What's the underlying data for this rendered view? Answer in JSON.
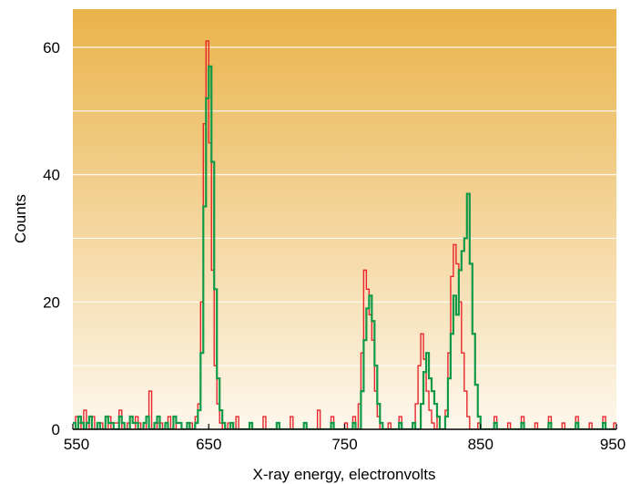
{
  "chart_data": {
    "type": "line",
    "title": "",
    "xlabel": "X-ray energy, electronvolts",
    "ylabel": "Counts",
    "xlim": [
      550,
      950
    ],
    "ylim": [
      0,
      66
    ],
    "xticks": [
      550,
      650,
      750,
      850,
      950
    ],
    "yticks": [
      0,
      20,
      40,
      60
    ],
    "grid": "horizontal",
    "background": {
      "top": "#eab34a",
      "bottom": "#fdf7ec"
    },
    "series": [
      {
        "color": "#e8262b",
        "step": true,
        "points": [
          [
            550,
            0
          ],
          [
            552,
            2
          ],
          [
            554,
            1
          ],
          [
            556,
            0
          ],
          [
            558,
            3
          ],
          [
            560,
            1
          ],
          [
            562,
            0
          ],
          [
            564,
            2
          ],
          [
            566,
            0
          ],
          [
            570,
            1
          ],
          [
            572,
            0
          ],
          [
            576,
            2
          ],
          [
            578,
            0
          ],
          [
            580,
            1
          ],
          [
            584,
            3
          ],
          [
            586,
            0
          ],
          [
            590,
            1
          ],
          [
            592,
            0
          ],
          [
            596,
            2
          ],
          [
            598,
            1
          ],
          [
            600,
            0
          ],
          [
            604,
            2
          ],
          [
            606,
            6
          ],
          [
            608,
            0
          ],
          [
            612,
            1
          ],
          [
            616,
            0
          ],
          [
            620,
            2
          ],
          [
            622,
            0
          ],
          [
            626,
            1
          ],
          [
            630,
            0
          ],
          [
            636,
            1
          ],
          [
            638,
            0
          ],
          [
            640,
            2
          ],
          [
            642,
            4
          ],
          [
            644,
            20
          ],
          [
            646,
            48
          ],
          [
            648,
            61
          ],
          [
            650,
            45
          ],
          [
            652,
            25
          ],
          [
            654,
            10
          ],
          [
            656,
            4
          ],
          [
            658,
            1
          ],
          [
            660,
            0
          ],
          [
            664,
            1
          ],
          [
            666,
            0
          ],
          [
            670,
            2
          ],
          [
            672,
            0
          ],
          [
            680,
            1
          ],
          [
            682,
            0
          ],
          [
            690,
            2
          ],
          [
            692,
            0
          ],
          [
            700,
            1
          ],
          [
            702,
            0
          ],
          [
            710,
            2
          ],
          [
            712,
            0
          ],
          [
            720,
            1
          ],
          [
            722,
            0
          ],
          [
            730,
            3
          ],
          [
            732,
            0
          ],
          [
            740,
            2
          ],
          [
            742,
            0
          ],
          [
            750,
            1
          ],
          [
            752,
            0
          ],
          [
            756,
            2
          ],
          [
            758,
            0
          ],
          [
            760,
            4
          ],
          [
            762,
            12
          ],
          [
            764,
            25
          ],
          [
            766,
            22
          ],
          [
            768,
            18
          ],
          [
            770,
            14
          ],
          [
            772,
            6
          ],
          [
            774,
            2
          ],
          [
            776,
            0
          ],
          [
            782,
            1
          ],
          [
            784,
            0
          ],
          [
            790,
            2
          ],
          [
            792,
            0
          ],
          [
            800,
            1
          ],
          [
            802,
            4
          ],
          [
            804,
            10
          ],
          [
            806,
            15
          ],
          [
            808,
            11
          ],
          [
            810,
            6
          ],
          [
            812,
            3
          ],
          [
            814,
            1
          ],
          [
            816,
            0
          ],
          [
            818,
            2
          ],
          [
            820,
            0
          ],
          [
            824,
            3
          ],
          [
            826,
            12
          ],
          [
            828,
            24
          ],
          [
            830,
            29
          ],
          [
            832,
            26
          ],
          [
            834,
            20
          ],
          [
            836,
            12
          ],
          [
            838,
            6
          ],
          [
            840,
            2
          ],
          [
            842,
            0
          ],
          [
            848,
            1
          ],
          [
            850,
            0
          ],
          [
            860,
            2
          ],
          [
            862,
            0
          ],
          [
            870,
            1
          ],
          [
            872,
            0
          ],
          [
            880,
            2
          ],
          [
            882,
            0
          ],
          [
            890,
            1
          ],
          [
            892,
            0
          ],
          [
            900,
            2
          ],
          [
            902,
            0
          ],
          [
            910,
            1
          ],
          [
            912,
            0
          ],
          [
            920,
            2
          ],
          [
            922,
            0
          ],
          [
            930,
            1
          ],
          [
            932,
            0
          ],
          [
            940,
            2
          ],
          [
            942,
            0
          ],
          [
            948,
            1
          ],
          [
            950,
            0
          ]
        ]
      },
      {
        "color": "#109a48",
        "step": true,
        "points": [
          [
            550,
            1
          ],
          [
            552,
            0
          ],
          [
            554,
            2
          ],
          [
            556,
            1
          ],
          [
            558,
            0
          ],
          [
            560,
            1
          ],
          [
            562,
            2
          ],
          [
            564,
            0
          ],
          [
            568,
            1
          ],
          [
            570,
            0
          ],
          [
            574,
            2
          ],
          [
            576,
            1
          ],
          [
            580,
            0
          ],
          [
            584,
            2
          ],
          [
            586,
            1
          ],
          [
            588,
            0
          ],
          [
            592,
            2
          ],
          [
            594,
            1
          ],
          [
            598,
            0
          ],
          [
            602,
            1
          ],
          [
            604,
            2
          ],
          [
            606,
            0
          ],
          [
            610,
            1
          ],
          [
            612,
            2
          ],
          [
            614,
            0
          ],
          [
            618,
            1
          ],
          [
            620,
            0
          ],
          [
            624,
            2
          ],
          [
            626,
            1
          ],
          [
            630,
            0
          ],
          [
            634,
            1
          ],
          [
            636,
            0
          ],
          [
            640,
            1
          ],
          [
            642,
            3
          ],
          [
            644,
            12
          ],
          [
            646,
            35
          ],
          [
            648,
            52
          ],
          [
            650,
            57
          ],
          [
            652,
            42
          ],
          [
            654,
            22
          ],
          [
            656,
            8
          ],
          [
            658,
            3
          ],
          [
            660,
            1
          ],
          [
            662,
            0
          ],
          [
            666,
            1
          ],
          [
            668,
            0
          ],
          [
            680,
            1
          ],
          [
            682,
            0
          ],
          [
            700,
            1
          ],
          [
            702,
            0
          ],
          [
            720,
            1
          ],
          [
            722,
            0
          ],
          [
            740,
            1
          ],
          [
            742,
            0
          ],
          [
            756,
            1
          ],
          [
            758,
            0
          ],
          [
            762,
            6
          ],
          [
            764,
            14
          ],
          [
            766,
            19
          ],
          [
            768,
            21
          ],
          [
            770,
            17
          ],
          [
            772,
            10
          ],
          [
            774,
            4
          ],
          [
            776,
            1
          ],
          [
            778,
            0
          ],
          [
            790,
            1
          ],
          [
            792,
            0
          ],
          [
            800,
            1
          ],
          [
            802,
            0
          ],
          [
            806,
            4
          ],
          [
            808,
            9
          ],
          [
            810,
            12
          ],
          [
            812,
            8
          ],
          [
            814,
            6
          ],
          [
            816,
            4
          ],
          [
            818,
            2
          ],
          [
            820,
            0
          ],
          [
            824,
            2
          ],
          [
            826,
            8
          ],
          [
            828,
            15
          ],
          [
            830,
            21
          ],
          [
            832,
            18
          ],
          [
            834,
            25
          ],
          [
            836,
            28
          ],
          [
            838,
            30
          ],
          [
            840,
            37
          ],
          [
            842,
            26
          ],
          [
            844,
            15
          ],
          [
            846,
            7
          ],
          [
            848,
            2
          ],
          [
            850,
            0
          ],
          [
            860,
            1
          ],
          [
            862,
            0
          ],
          [
            880,
            1
          ],
          [
            882,
            0
          ],
          [
            900,
            1
          ],
          [
            902,
            0
          ],
          [
            920,
            1
          ],
          [
            922,
            0
          ],
          [
            940,
            1
          ],
          [
            942,
            0
          ],
          [
            950,
            0
          ]
        ]
      }
    ]
  }
}
